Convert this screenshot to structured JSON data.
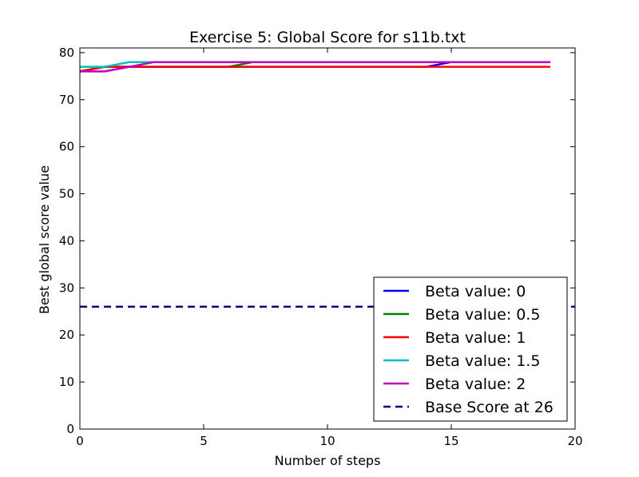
{
  "chart_data": {
    "type": "line",
    "title": "Exercise 5: Global Score for s11b.txt",
    "xlabel": "Number of steps",
    "ylabel": "Best global score value",
    "xlim": [
      0,
      20
    ],
    "ylim": [
      0,
      81
    ],
    "xticks": [
      0,
      5,
      10,
      15,
      20
    ],
    "yticks": [
      0,
      10,
      20,
      30,
      40,
      50,
      60,
      70,
      80
    ],
    "grid": false,
    "legend_position": "lower-right",
    "x": [
      0,
      1,
      2,
      3,
      4,
      5,
      6,
      7,
      8,
      9,
      10,
      11,
      12,
      13,
      14,
      15,
      16,
      17,
      18,
      19
    ],
    "series": [
      {
        "name": "Beta value: 0",
        "color": "#0000ff",
        "style": "solid",
        "values": [
          76,
          77,
          77,
          77,
          77,
          77,
          77,
          77,
          77,
          77,
          77,
          77,
          77,
          77,
          77,
          78,
          78,
          78,
          78,
          78
        ]
      },
      {
        "name": "Beta value: 0.5",
        "color": "#008000",
        "style": "solid",
        "values": [
          76,
          77,
          77,
          77,
          77,
          77,
          77,
          78,
          78,
          78,
          78,
          78,
          78,
          78,
          78,
          78,
          78,
          78,
          78,
          78
        ]
      },
      {
        "name": "Beta value: 1",
        "color": "#ff0000",
        "style": "solid",
        "values": [
          76,
          77,
          77,
          77,
          77,
          77,
          77,
          77,
          77,
          77,
          77,
          77,
          77,
          77,
          77,
          77,
          77,
          77,
          77,
          77
        ]
      },
      {
        "name": "Beta value: 1.5",
        "color": "#00bfbf",
        "style": "solid",
        "values": [
          77,
          77,
          78,
          78,
          78,
          78,
          78,
          78,
          78,
          78,
          78,
          78,
          78,
          78,
          78,
          78,
          78,
          78,
          78,
          78
        ]
      },
      {
        "name": "Beta value: 2",
        "color": "#bf00bf",
        "style": "solid",
        "values": [
          76,
          76,
          77,
          78,
          78,
          78,
          78,
          78,
          78,
          78,
          78,
          78,
          78,
          78,
          78,
          78,
          78,
          78,
          78,
          78
        ]
      }
    ],
    "baseline": {
      "name": "Base Score at 26",
      "value": 26,
      "color": "#000080",
      "style": "dashed"
    }
  }
}
